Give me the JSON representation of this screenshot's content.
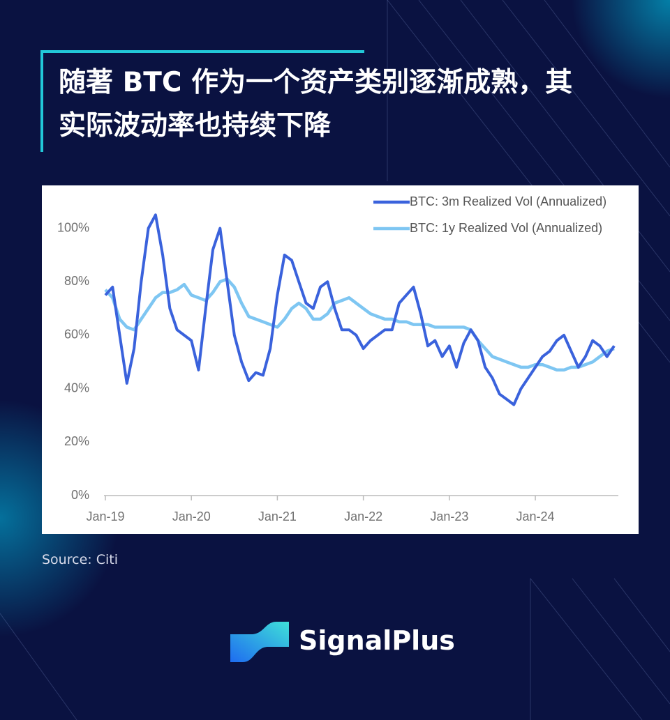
{
  "header": {
    "title": "随著 BTC 作为一个资产类别逐渐成熟，其实际波动率也持续下降"
  },
  "chart_data": {
    "type": "line",
    "x": [
      "2019-01",
      "2019-02",
      "2019-03",
      "2019-04",
      "2019-05",
      "2019-06",
      "2019-07",
      "2019-08",
      "2019-09",
      "2019-10",
      "2019-11",
      "2019-12",
      "2020-01",
      "2020-02",
      "2020-03",
      "2020-04",
      "2020-05",
      "2020-06",
      "2020-07",
      "2020-08",
      "2020-09",
      "2020-10",
      "2020-11",
      "2020-12",
      "2021-01",
      "2021-02",
      "2021-03",
      "2021-04",
      "2021-05",
      "2021-06",
      "2021-07",
      "2021-08",
      "2021-09",
      "2021-10",
      "2021-11",
      "2021-12",
      "2022-01",
      "2022-02",
      "2022-03",
      "2022-04",
      "2022-05",
      "2022-06",
      "2022-07",
      "2022-08",
      "2022-09",
      "2022-10",
      "2022-11",
      "2022-12",
      "2023-01",
      "2023-02",
      "2023-03",
      "2023-04",
      "2023-05",
      "2023-06",
      "2023-07",
      "2023-08",
      "2023-09",
      "2023-10",
      "2023-11",
      "2023-12",
      "2024-01",
      "2024-02",
      "2024-03",
      "2024-04",
      "2024-05",
      "2024-06",
      "2024-07",
      "2024-08",
      "2024-09",
      "2024-10",
      "2024-11",
      "2024-12"
    ],
    "xlim": [
      "2019-01",
      "2024-12"
    ],
    "xticks": [
      {
        "value": "2019-01",
        "label": "Jan-19"
      },
      {
        "value": "2020-01",
        "label": "Jan-20"
      },
      {
        "value": "2021-01",
        "label": "Jan-21"
      },
      {
        "value": "2022-01",
        "label": "Jan-22"
      },
      {
        "value": "2023-01",
        "label": "Jan-23"
      },
      {
        "value": "2024-01",
        "label": "Jan-24"
      }
    ],
    "ylim": [
      0,
      115
    ],
    "yticks": [
      {
        "value": 0,
        "label": "0%"
      },
      {
        "value": 20,
        "label": "20%"
      },
      {
        "value": 40,
        "label": "40%"
      },
      {
        "value": 60,
        "label": "60%"
      },
      {
        "value": 80,
        "label": "80%"
      },
      {
        "value": 100,
        "label": "100%"
      }
    ],
    "legend": "upper right",
    "series": [
      {
        "name": "BTC: 3m Realized Vol (Annualized)",
        "color": "#3a62dc",
        "values": [
          75,
          78,
          60,
          42,
          55,
          80,
          100,
          105,
          90,
          70,
          62,
          60,
          58,
          47,
          70,
          92,
          100,
          80,
          60,
          50,
          43,
          46,
          45,
          55,
          75,
          90,
          88,
          80,
          72,
          70,
          78,
          80,
          70,
          62,
          62,
          60,
          55,
          58,
          60,
          62,
          62,
          72,
          75,
          78,
          68,
          56,
          58,
          52,
          56,
          48,
          57,
          62,
          58,
          48,
          44,
          38,
          36,
          34,
          40,
          44,
          48,
          52,
          54,
          58,
          60,
          54,
          48,
          52,
          58,
          56,
          52,
          56
        ]
      },
      {
        "name": "BTC: 1y Realized Vol (Annualized)",
        "color": "#7ec6f2",
        "values": [
          77,
          74,
          66,
          63,
          62,
          66,
          70,
          74,
          76,
          76,
          77,
          79,
          75,
          74,
          73,
          76,
          80,
          81,
          78,
          72,
          67,
          66,
          65,
          64,
          63,
          66,
          70,
          72,
          70,
          66,
          66,
          68,
          72,
          73,
          74,
          72,
          70,
          68,
          67,
          66,
          66,
          65,
          65,
          64,
          64,
          64,
          63,
          63,
          63,
          63,
          63,
          62,
          58,
          55,
          52,
          51,
          50,
          49,
          48,
          48,
          49,
          49,
          48,
          47,
          47,
          48,
          48,
          49,
          50,
          52,
          54,
          55
        ]
      }
    ]
  },
  "source": "Source: Citi",
  "brand": "SignalPlus"
}
